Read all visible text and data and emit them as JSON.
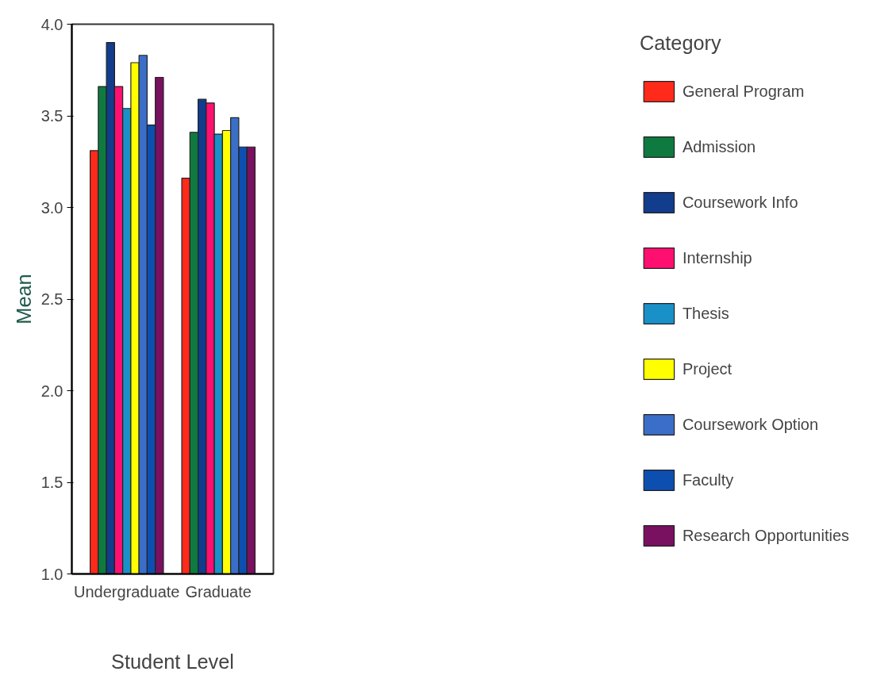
{
  "chart_data": {
    "type": "bar",
    "categories": [
      "Undergraduate",
      "Graduate"
    ],
    "xlabel": "Student Level",
    "ylabel": "Mean",
    "legend_title": "Category",
    "ylim": [
      1.0,
      4.0
    ],
    "yticks": [
      {
        "value": 1,
        "label": "1.0"
      },
      {
        "value": 1.5,
        "label": "1.5"
      },
      {
        "value": 2,
        "label": "2.0"
      },
      {
        "value": 2.5,
        "label": "2.5"
      },
      {
        "value": 3,
        "label": "3.0"
      },
      {
        "value": 3.5,
        "label": "3.5"
      },
      {
        "value": 4,
        "label": "4.0"
      }
    ],
    "grid": false,
    "legend": "right",
    "series": [
      {
        "name": "General Program",
        "color": "#ff2a1a",
        "values": [
          3.31,
          3.16
        ]
      },
      {
        "name": "Admission",
        "color": "#0f7a40",
        "values": [
          3.66,
          3.41
        ]
      },
      {
        "name": "Coursework Info",
        "color": "#123c8c",
        "values": [
          3.9,
          3.59
        ]
      },
      {
        "name": "Internship",
        "color": "#ff1070",
        "values": [
          3.66,
          3.57
        ]
      },
      {
        "name": "Thesis",
        "color": "#1a90c8",
        "values": [
          3.54,
          3.4
        ]
      },
      {
        "name": "Project",
        "color": "#ffff00",
        "values": [
          3.79,
          3.42
        ]
      },
      {
        "name": "Coursework Option",
        "color": "#3a6ec8",
        "values": [
          3.83,
          3.49
        ]
      },
      {
        "name": "Faculty",
        "color": "#0d4fb0",
        "values": [
          3.45,
          3.33
        ]
      },
      {
        "name": "Research Opportunities",
        "color": "#7a1060",
        "values": [
          3.71,
          3.33
        ]
      }
    ]
  }
}
